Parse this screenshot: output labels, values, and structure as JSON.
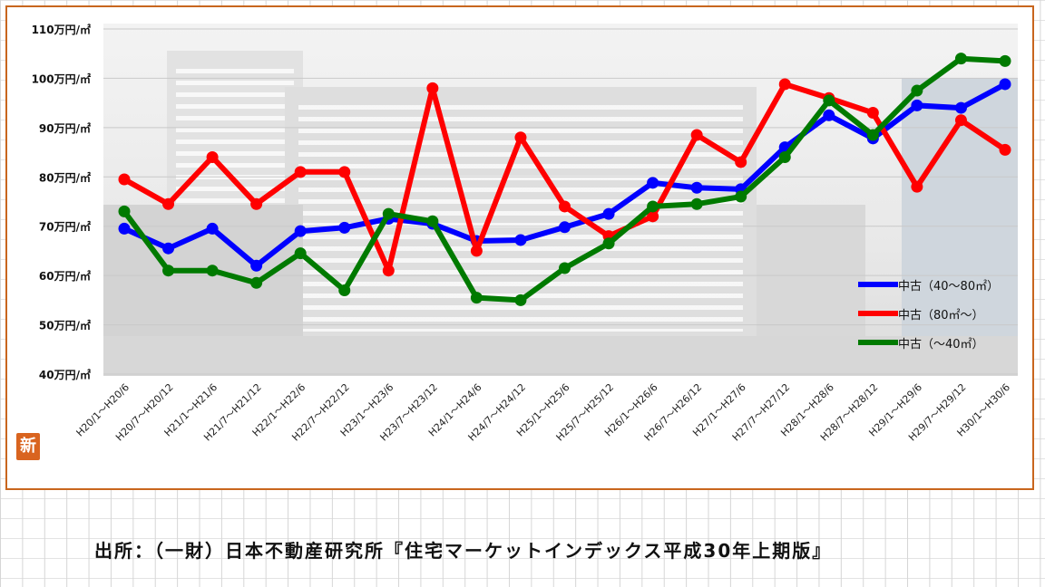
{
  "source_note": "出所：（一財）日本不動産研究所『住宅マーケットインデックス平成30年上期版』",
  "badge_text": "新",
  "chart_data": {
    "type": "line",
    "categories": [
      "H20/1～H20/6",
      "H20/7～H20/12",
      "H21/1～H21/6",
      "H21/7～H21/12",
      "H22/1～H22/6",
      "H22/7～H22/12",
      "H23/1～H23/6",
      "H23/7～H23/12",
      "H24/1～H24/6",
      "H24/7～H24/12",
      "H25/1～H25/6",
      "H25/7～H25/12",
      "H26/1～H26/6",
      "H26/7～H26/12",
      "H27/1～H27/6",
      "H27/7～H27/12",
      "H28/1～H28/6",
      "H28/7～H28/12",
      "H29/1～H29/6",
      "H29/7～H29/12",
      "H30/1～H30/6"
    ],
    "series": [
      {
        "name": "中古（40～80㎡）",
        "color": "#0000ff",
        "values": [
          69.5,
          65.5,
          69.5,
          62,
          69,
          69.7,
          71.5,
          70.5,
          67,
          67.2,
          69.8,
          72.5,
          78.8,
          77.8,
          77.5,
          86,
          92.5,
          87.8,
          94.5,
          94,
          98.8
        ]
      },
      {
        "name": "中古（80㎡～）",
        "color": "#ff0000",
        "values": [
          79.5,
          74.5,
          84,
          74.5,
          81,
          81,
          61,
          98,
          65,
          88,
          74,
          68,
          72,
          88.5,
          83,
          98.8,
          96,
          93,
          78,
          91.5,
          85.5
        ]
      },
      {
        "name": "中古（～40㎡）",
        "color": "#007a00",
        "values": [
          73,
          61,
          61,
          58.5,
          64.5,
          57,
          72.5,
          71,
          55.5,
          55,
          61.5,
          66.5,
          74,
          74.5,
          76,
          84,
          95.5,
          88.5,
          97.5,
          104,
          103.5
        ]
      }
    ],
    "y_tick_labels": [
      "40万円/㎡",
      "50万円/㎡",
      "60万円/㎡",
      "70万円/㎡",
      "80万円/㎡",
      "90万円/㎡",
      "100万円/㎡",
      "110万円/㎡"
    ],
    "y_ticks": [
      40,
      50,
      60,
      70,
      80,
      90,
      100,
      110
    ],
    "ylim": [
      40,
      110
    ],
    "legend_position": "right"
  }
}
